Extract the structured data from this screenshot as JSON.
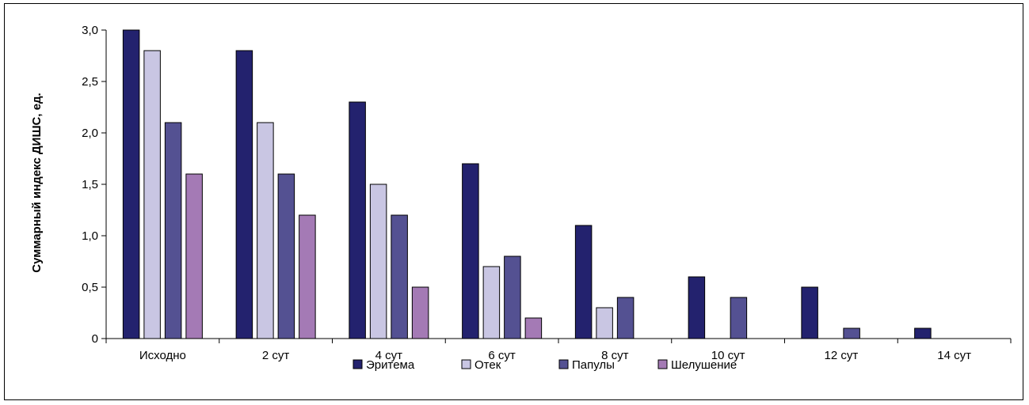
{
  "chart_data": {
    "type": "bar",
    "title": "",
    "xlabel": "",
    "ylabel": "Суммарный индекс ДИШС, ед.",
    "ylim": [
      0,
      3.0
    ],
    "yticks": [
      {
        "value": 0,
        "label": "0"
      },
      {
        "value": 0.5,
        "label": "0,5"
      },
      {
        "value": 1.0,
        "label": "1,0"
      },
      {
        "value": 1.5,
        "label": "1,5"
      },
      {
        "value": 2.0,
        "label": "2,0"
      },
      {
        "value": 2.5,
        "label": "2,5"
      },
      {
        "value": 3.0,
        "label": "3,0"
      }
    ],
    "categories": [
      "Исходно",
      "2 сут",
      "4 сут",
      "6 сут",
      "8 сут",
      "10 сут",
      "12 сут",
      "14 сут"
    ],
    "series": [
      {
        "name": "Эритема",
        "color": "#23226e",
        "values": [
          3.0,
          2.8,
          2.3,
          1.7,
          1.1,
          0.6,
          0.5,
          0.1
        ]
      },
      {
        "name": "Отек",
        "color": "#c9c6e3",
        "values": [
          2.8,
          2.1,
          1.5,
          0.7,
          0.3,
          null,
          null,
          null
        ]
      },
      {
        "name": "Папулы",
        "color": "#545192",
        "values": [
          2.1,
          1.6,
          1.2,
          0.8,
          0.4,
          0.4,
          0.1,
          null
        ]
      },
      {
        "name": "Шелушение",
        "color": "#a47ab5",
        "values": [
          1.6,
          1.2,
          0.5,
          0.2,
          null,
          null,
          null,
          null
        ]
      }
    ],
    "grid": false,
    "legend_position": "bottom"
  }
}
